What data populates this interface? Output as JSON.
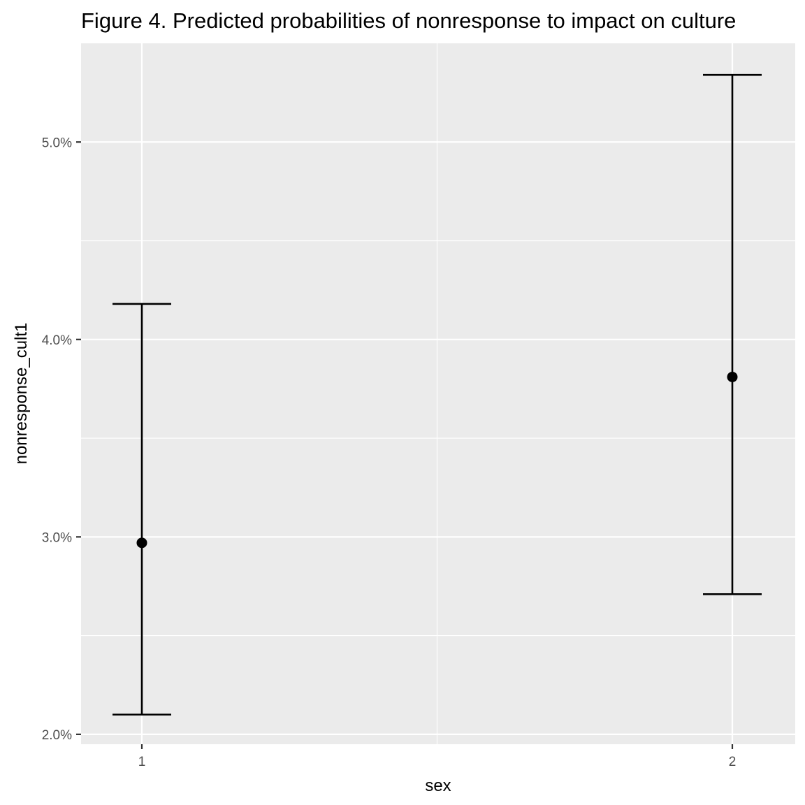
{
  "chart_data": {
    "type": "scatter",
    "title": "Figure 4. Predicted probabilities of nonresponse to impact on culture",
    "xlabel": "sex",
    "ylabel": "nonresponse_cult1",
    "categories": [
      "1",
      "2"
    ],
    "points": [
      {
        "x": "1",
        "y": 0.0297,
        "ymin": 0.021,
        "ymax": 0.0418
      },
      {
        "x": "2",
        "y": 0.0381,
        "ymin": 0.0271,
        "ymax": 0.0534
      }
    ],
    "ylim": [
      0.0195,
      0.055
    ],
    "yticks": [
      {
        "value": 0.02,
        "label": "2.0%"
      },
      {
        "value": 0.03,
        "label": "3.0%"
      },
      {
        "value": 0.04,
        "label": "4.0%"
      },
      {
        "value": 0.05,
        "label": "5.0%"
      }
    ],
    "y_minor_ticks": [
      0.025,
      0.035,
      0.045
    ],
    "grid": true,
    "colors": {
      "panel": "#ebebeb",
      "grid": "#ffffff",
      "marks": "#000000"
    }
  }
}
